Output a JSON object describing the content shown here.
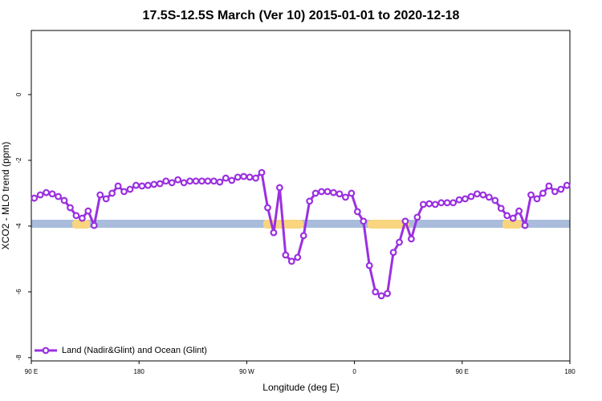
{
  "chart_data": {
    "type": "line",
    "title": "17.5S-12.5S March (Ver 10)   2015-01-01 to 2020-12-18",
    "x_label": "Longitude (deg E)",
    "y_label": "XCO2 - MLO trend (ppm)",
    "xlim": [
      90,
      540
    ],
    "ylim": [
      -8.1,
      1.95
    ],
    "xticks": [
      {
        "value": 90,
        "label": "90 E"
      },
      180,
      {
        "value": 270,
        "label": "90 W"
      },
      {
        "value": 360,
        "label": "0"
      },
      {
        "value": 450,
        "label": "90 E"
      },
      {
        "value": 540,
        "label": "180"
      }
    ],
    "yticks": [
      -8,
      -6,
      -4,
      -2,
      0
    ],
    "legend": "lower left",
    "grid": false,
    "x": [
      92.5,
      97.5,
      102.5,
      107.5,
      112.5,
      117.5,
      122.5,
      127.5,
      132.5,
      137.5,
      142.5,
      147.5,
      152.5,
      157.5,
      162.5,
      167.5,
      172.5,
      177.5,
      182.5,
      187.5,
      192.5,
      197.5,
      202.5,
      207.5,
      212.5,
      217.5,
      222.5,
      227.5,
      232.5,
      237.5,
      242.5,
      247.5,
      252.5,
      257.5,
      262.5,
      267.5,
      272.5,
      277.5,
      282.5,
      287.5,
      292.5,
      297.5,
      302.5,
      307.5,
      312.5,
      317.5,
      322.5,
      327.5,
      332.5,
      337.5,
      342.5,
      347.5,
      352.5,
      357.5,
      362.5,
      367.5,
      372.5,
      377.5,
      382.5,
      387.5,
      392.5,
      397.5,
      402.5,
      407.5,
      412.5,
      417.5,
      422.5,
      427.5,
      432.5,
      437.5,
      442.5,
      447.5,
      452.5,
      457.5,
      462.5,
      467.5,
      472.5,
      477.5,
      482.5,
      487.5,
      492.5,
      497.5,
      502.5,
      507.5,
      512.5,
      517.5,
      522.5,
      527.5,
      532.5,
      537.5
    ],
    "series": [
      {
        "name": "Land (Nadir&Glint) and Ocean (Glint)",
        "color": "#9b30e0",
        "values": [
          -3.15,
          -3.05,
          -2.98,
          -3.02,
          -3.1,
          -3.22,
          -3.44,
          -3.68,
          -3.76,
          -3.54,
          -3.98,
          -3.05,
          -3.17,
          -3.0,
          -2.78,
          -2.95,
          -2.88,
          -2.76,
          -2.78,
          -2.76,
          -2.73,
          -2.71,
          -2.63,
          -2.68,
          -2.59,
          -2.68,
          -2.63,
          -2.63,
          -2.63,
          -2.63,
          -2.63,
          -2.66,
          -2.54,
          -2.61,
          -2.51,
          -2.49,
          -2.51,
          -2.54,
          -2.37,
          -3.44,
          -4.2,
          -2.83,
          -4.88,
          -5.07,
          -4.95,
          -4.29,
          -3.24,
          -3.0,
          -2.95,
          -2.95,
          -2.98,
          -3.02,
          -3.12,
          -3.0,
          -3.56,
          -3.85,
          -5.2,
          -6.0,
          -6.12,
          -6.05,
          -4.8,
          -4.49,
          -3.85,
          -4.39,
          -3.73,
          -3.34,
          -3.32,
          -3.34,
          -3.29,
          -3.29,
          -3.29,
          -3.2,
          -3.17,
          -3.1,
          -3.02,
          -3.05,
          -3.12,
          -3.22,
          -3.46,
          -3.68,
          -3.76,
          -3.54,
          -3.98,
          -3.05,
          -3.17,
          -3.0,
          -2.78,
          -2.95,
          -2.88,
          -2.76
        ]
      }
    ]
  }
}
